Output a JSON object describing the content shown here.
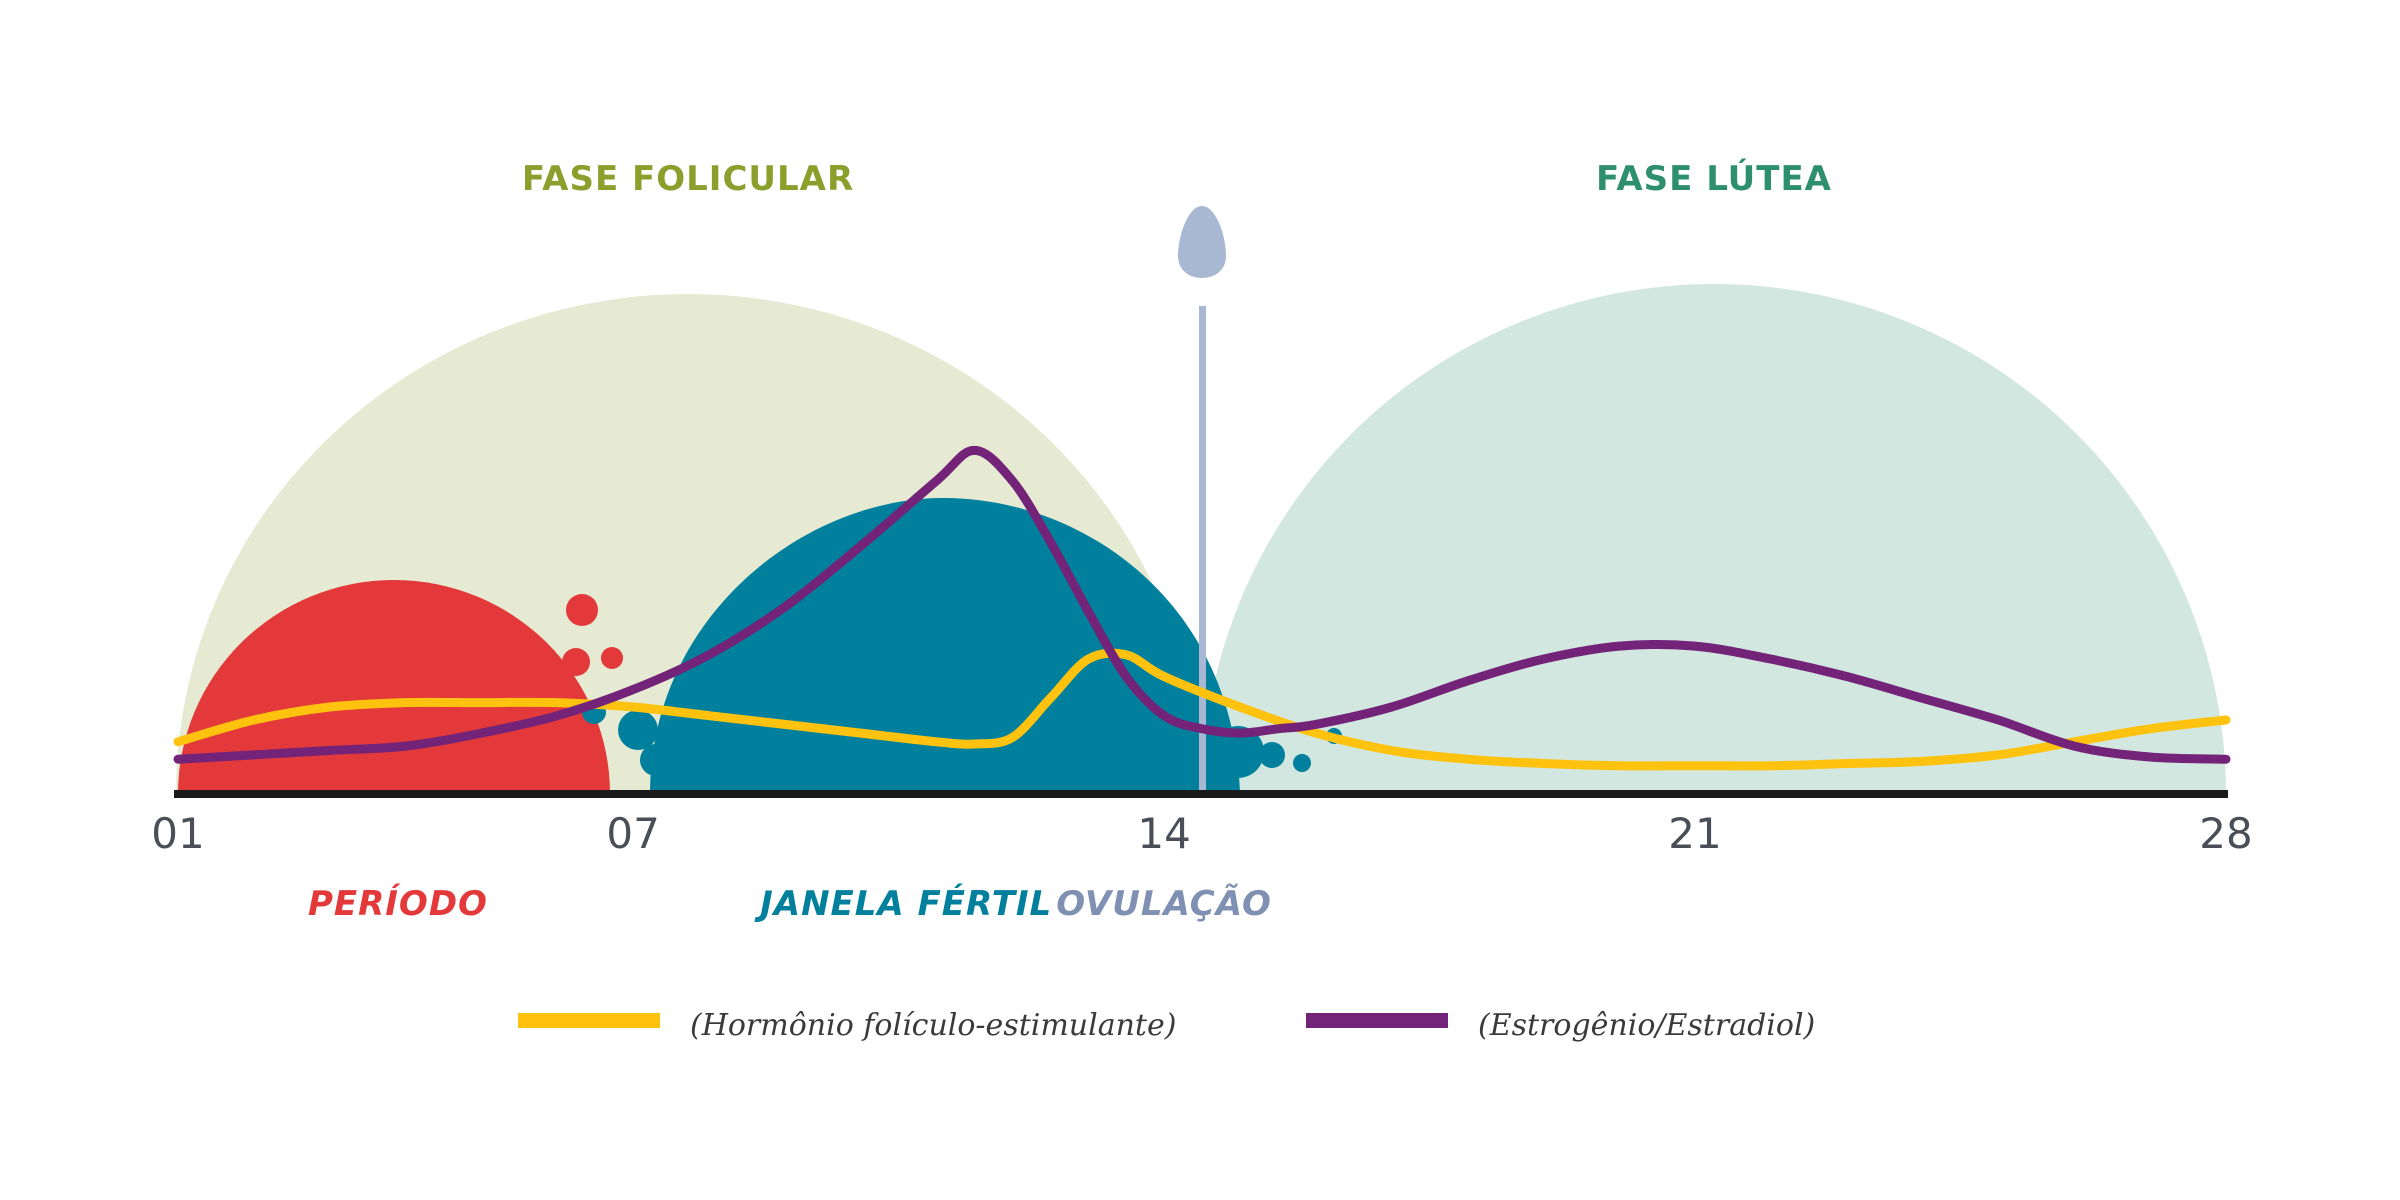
{
  "colors": {
    "follicular_bg": "#e6ead2",
    "luteal_bg": "#d2e7df",
    "period": "#e3393a",
    "fertile": "#00809c",
    "ovulation": "#a9b8d2",
    "ovulation_text": "#7f90b3",
    "fsh": "#ffc20e",
    "estrogen": "#732479",
    "axis": "#1a1a1a",
    "follicular_text": "#8a9f2c",
    "luteal_text": "#2e8f6e"
  },
  "chart_data": {
    "type": "line",
    "title": "",
    "x_range": [
      1,
      28
    ],
    "y_range": [
      0,
      100
    ],
    "x_ticks": [
      "01",
      "07",
      "14",
      "21",
      "28"
    ],
    "x_tick_values": [
      1,
      7,
      14,
      21,
      28
    ],
    "phases": [
      {
        "name": "FASE FOLICULAR",
        "start_day": 1,
        "end_day": 14,
        "center_day": 7.7,
        "color_key": "follicular_bg",
        "text_color_key": "follicular_text"
      },
      {
        "name": "FASE LÚTEA",
        "start_day": 14,
        "end_day": 28,
        "center_day": 21,
        "color_key": "luteal_bg",
        "text_color_key": "luteal_text"
      }
    ],
    "regions": [
      {
        "name": "PERÍODO",
        "start_day": 1,
        "end_day": 6,
        "center_day": 3.9,
        "color_key": "period"
      },
      {
        "name": "JANELA FÉRTIL",
        "start_day": 7,
        "end_day": 14,
        "center_day": 10.6,
        "color_key": "fertile"
      },
      {
        "name": "OVULAÇÃO",
        "day": 14,
        "color_key": "ovulation_text"
      }
    ],
    "series": [
      {
        "name": "(Hormônio folículo-estimulante)",
        "color_key": "fsh",
        "x": [
          1,
          2,
          3,
          4,
          5,
          6,
          7,
          8,
          9,
          10,
          11,
          11.5,
          12,
          12.5,
          13,
          13.5,
          14,
          15,
          16,
          17,
          18,
          19,
          20,
          21,
          22,
          23,
          24,
          25,
          26,
          27,
          28
        ],
        "values": [
          12,
          17,
          20,
          21,
          21,
          21,
          20,
          18,
          16,
          14,
          12,
          11.5,
          13,
          22,
          31,
          32,
          27,
          20,
          14,
          10,
          8,
          7,
          6.5,
          6.5,
          6.5,
          7,
          7.5,
          9,
          12,
          15,
          17
        ]
      },
      {
        "name": "(Estrogênio/Estradiol)",
        "color_key": "estrogen",
        "x": [
          1,
          2,
          3,
          4,
          5,
          6,
          7,
          8,
          9,
          10,
          11,
          11.5,
          12,
          12.5,
          13,
          13.5,
          14,
          14.5,
          15,
          15.5,
          16,
          17,
          18,
          19,
          20,
          21,
          22,
          23,
          24,
          25,
          26,
          27,
          28
        ],
        "values": [
          8,
          9,
          10,
          11,
          14,
          18,
          24,
          32,
          43,
          57,
          72,
          79,
          72,
          58,
          42,
          27,
          18,
          15,
          14,
          15,
          16,
          20,
          26,
          31,
          34,
          34,
          31,
          27,
          22,
          17,
          11,
          8.5,
          8
        ]
      }
    ],
    "legend": [
      {
        "label": "(Hormônio folículo-estimulante)",
        "color_key": "fsh"
      },
      {
        "label": "(Estrogênio/Estradiol)",
        "color_key": "estrogen"
      }
    ]
  }
}
